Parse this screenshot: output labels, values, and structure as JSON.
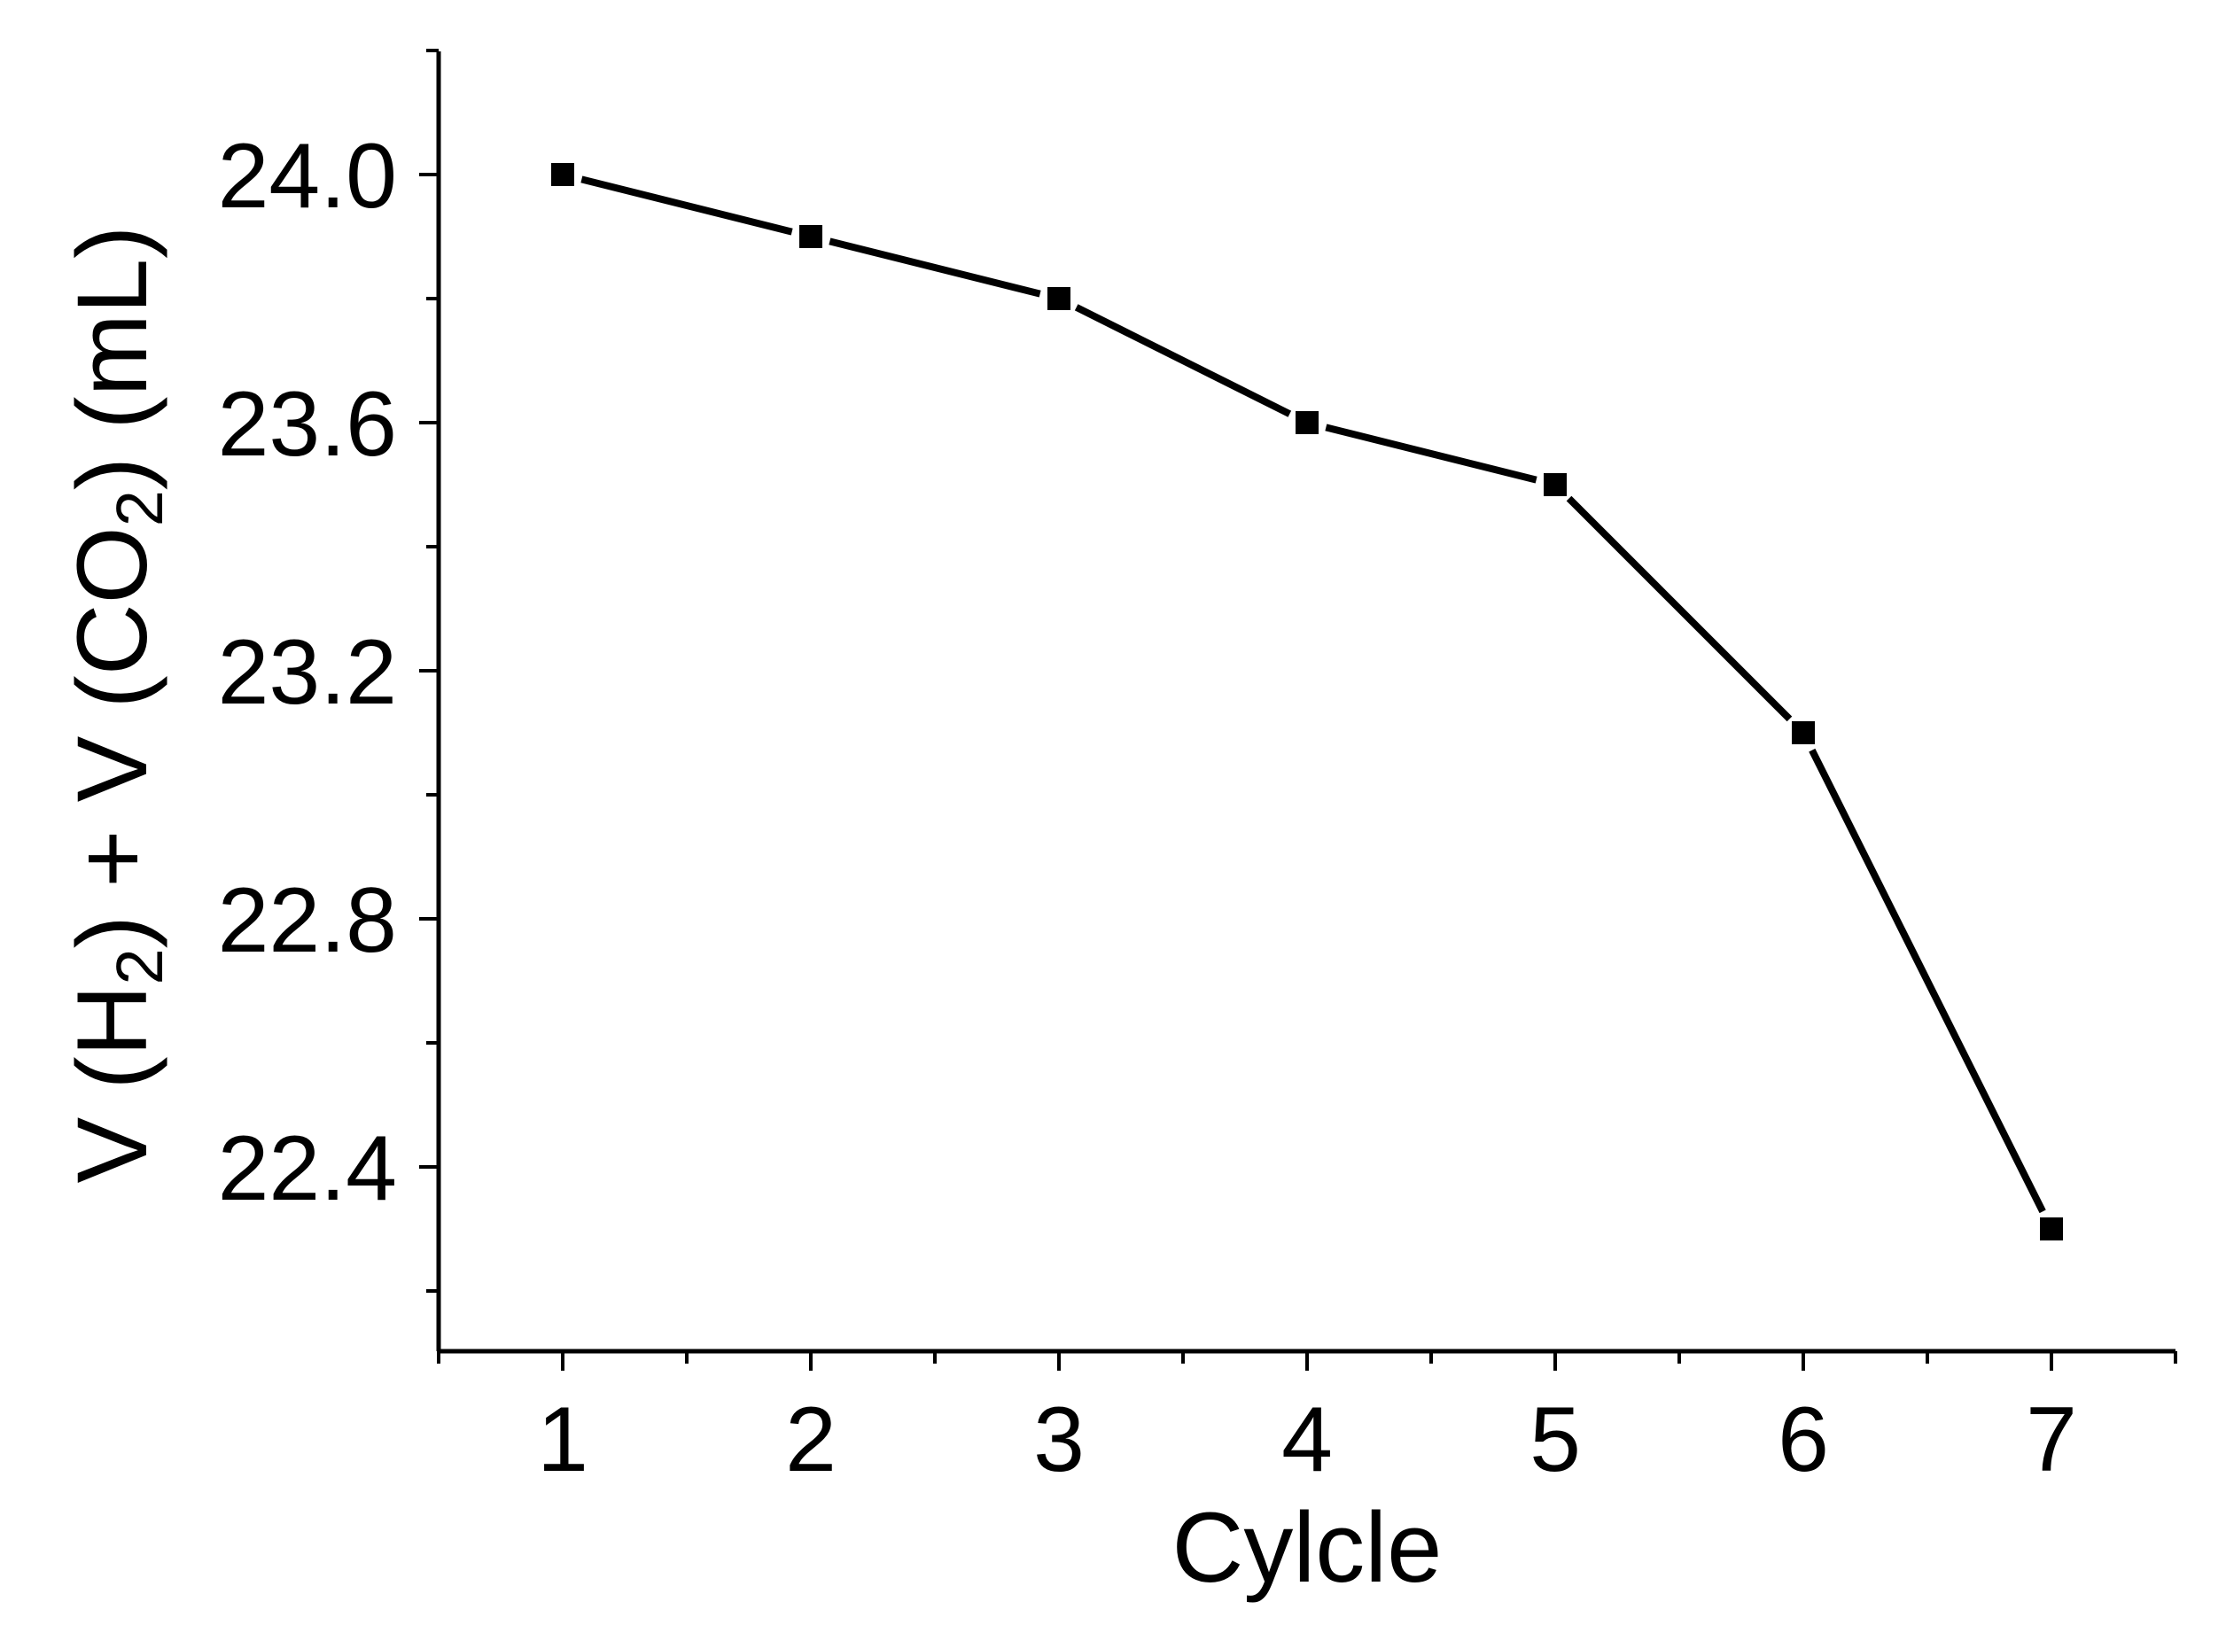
{
  "chart_data": {
    "type": "line",
    "title": "",
    "xlabel": "Cylcle",
    "ylabel": {
      "p1": "V (H",
      "sub1": "2",
      "p2": ") + V (CO",
      "sub2": "2",
      "p3": ") (mL)"
    },
    "x": [
      1,
      2,
      3,
      4,
      5,
      6,
      7
    ],
    "series": [
      {
        "name": "V (H2) + V (CO2)",
        "values": [
          24.0,
          23.9,
          23.8,
          23.6,
          23.5,
          23.1,
          22.3
        ],
        "marker": "square",
        "color": "#000000"
      }
    ],
    "xlim": [
      0.5,
      7.5
    ],
    "ylim": [
      22.1,
      24.2
    ],
    "xticks": [
      "1",
      "2",
      "3",
      "4",
      "5",
      "6",
      "7"
    ],
    "yticks": [
      "22.4",
      "22.8",
      "23.2",
      "23.6",
      "24.0"
    ],
    "grid": false,
    "legend": "none"
  }
}
